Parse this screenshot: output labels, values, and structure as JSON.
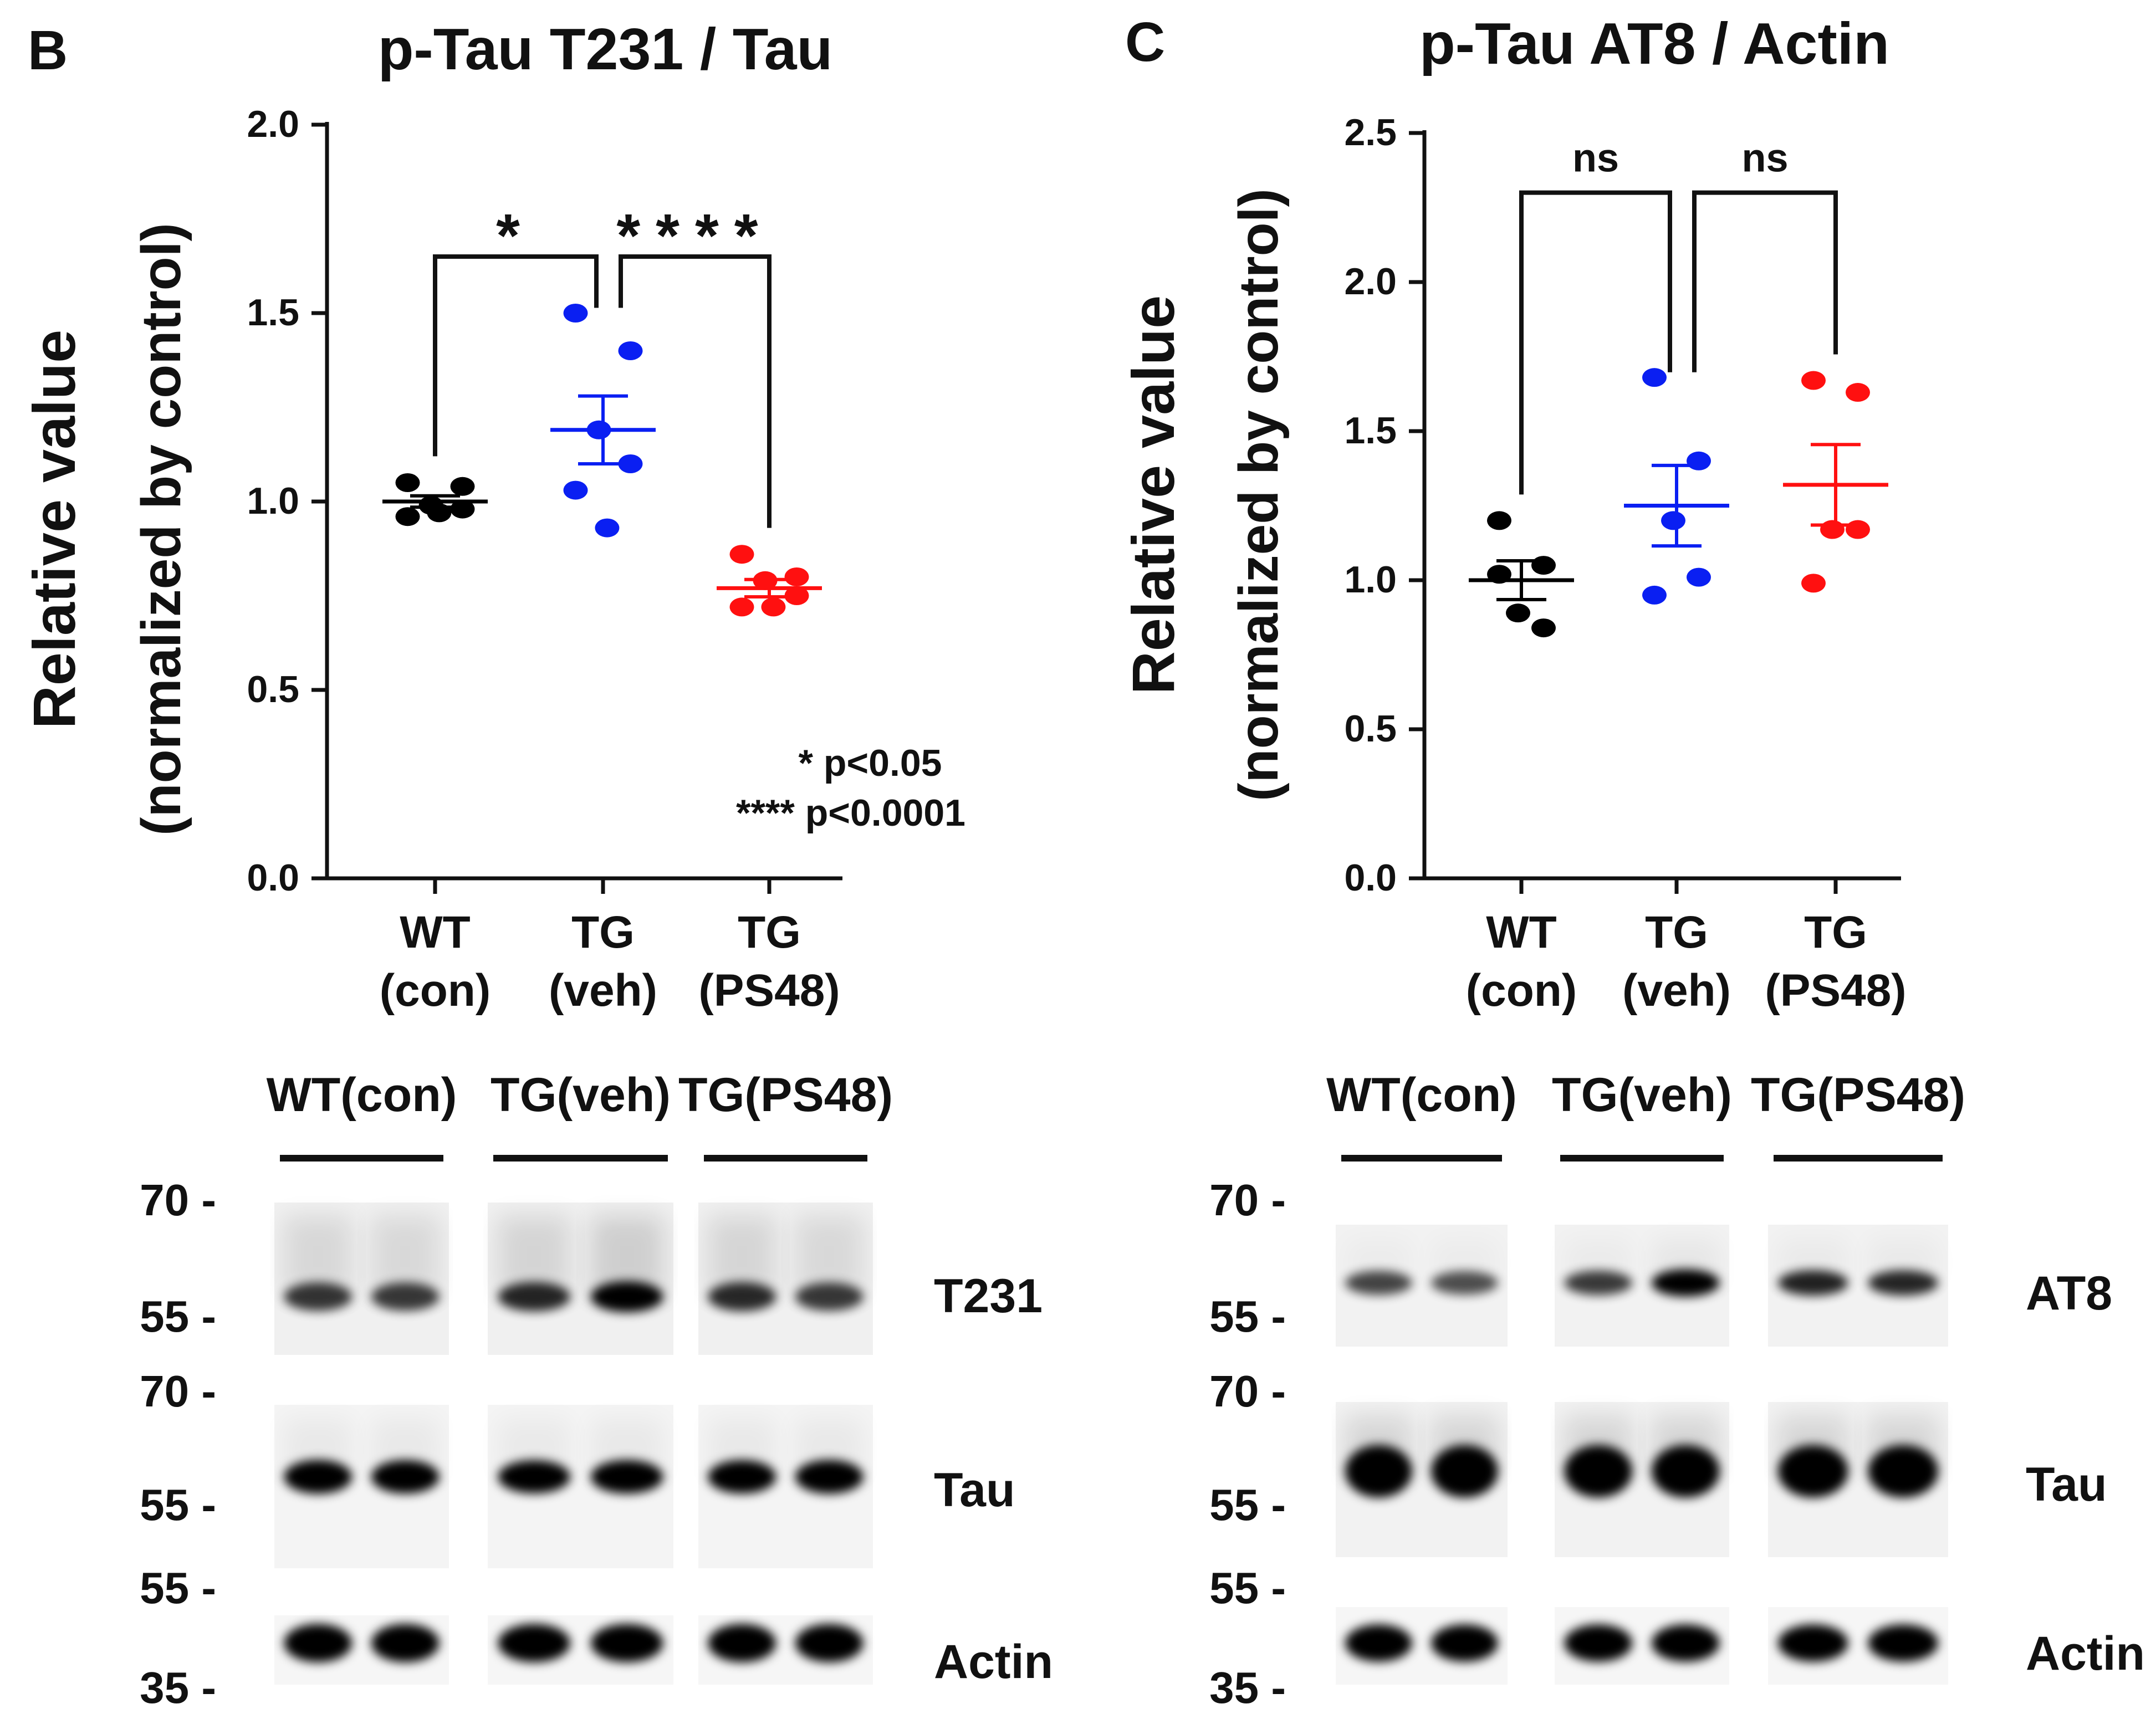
{
  "panels": {
    "B": {
      "label": "B"
    },
    "C": {
      "label": "C"
    }
  },
  "chart_data": [
    {
      "id": "B",
      "type": "scatter",
      "title": "p-Tau T231 / Tau",
      "ylabel_line1": "Relative value",
      "ylabel_line2": "(normalized by control)",
      "ylim": [
        0,
        2.0
      ],
      "yticks": [
        0.0,
        0.5,
        1.0,
        1.5,
        2.0
      ],
      "ytick_labels": [
        "0.0",
        "0.5",
        "1.0",
        "1.5",
        "2.0"
      ],
      "groups": [
        {
          "line1": "WT",
          "line2": "(con)",
          "color": "#000000",
          "values": [
            1.05,
            1.04,
            0.99,
            0.98,
            0.96,
            0.97
          ],
          "mean": 1.0,
          "sem": 0.015
        },
        {
          "line1": "TG",
          "line2": "(veh)",
          "color": "#0a1ff2",
          "values": [
            1.5,
            1.4,
            1.19,
            1.1,
            1.03,
            0.93
          ],
          "mean": 1.19,
          "sem": 0.09
        },
        {
          "line1": "TG",
          "line2": "(PS48)",
          "color": "#ff1010",
          "values": [
            0.86,
            0.8,
            0.79,
            0.75,
            0.72,
            0.72
          ],
          "mean": 0.77,
          "sem": 0.023
        }
      ],
      "comparisons": [
        {
          "from": 0,
          "to": 1,
          "label": "*"
        },
        {
          "from": 1,
          "to": 2,
          "label": "****"
        }
      ],
      "notes": [
        "* p<0.05",
        "**** p<0.0001"
      ]
    },
    {
      "id": "C",
      "type": "scatter",
      "title": "p-Tau AT8 / Actin",
      "ylabel_line1": "Relative value",
      "ylabel_line2": "(normalized by control)",
      "ylim": [
        0,
        2.5
      ],
      "yticks": [
        0.0,
        0.5,
        1.0,
        1.5,
        2.0,
        2.5
      ],
      "ytick_labels": [
        "0.0",
        "0.5",
        "1.0",
        "1.5",
        "2.0",
        "2.5"
      ],
      "groups": [
        {
          "line1": "WT",
          "line2": "(con)",
          "color": "#000000",
          "values": [
            1.2,
            1.05,
            0.89,
            0.84,
            1.02
          ],
          "mean": 1.0,
          "sem": 0.065
        },
        {
          "line1": "TG",
          "line2": "(veh)",
          "color": "#0a1ff2",
          "values": [
            1.68,
            1.4,
            1.2,
            1.01,
            0.95
          ],
          "mean": 1.25,
          "sem": 0.135
        },
        {
          "line1": "TG",
          "line2": "(PS48)",
          "color": "#ff1010",
          "values": [
            1.67,
            1.63,
            1.17,
            1.17,
            0.99
          ],
          "mean": 1.32,
          "sem": 0.135
        }
      ],
      "comparisons": [
        {
          "from": 0,
          "to": 1,
          "label": "ns"
        },
        {
          "from": 1,
          "to": 2,
          "label": "ns"
        }
      ],
      "notes": []
    }
  ],
  "blots": [
    {
      "id": "B",
      "groups": [
        "WT(con)",
        "TG(veh)",
        "TG(PS48)"
      ],
      "bands": [
        {
          "name": "T231",
          "mw_top": "70 -",
          "mw_bottom": "55 -",
          "intensities": [
            0.62,
            0.6,
            0.7,
            0.88,
            0.68,
            0.6
          ]
        },
        {
          "name": "Tau",
          "mw_top": "70 -",
          "mw_bottom": "55 -",
          "intensities": [
            0.95,
            0.92,
            0.88,
            0.93,
            0.92,
            0.95
          ]
        },
        {
          "name": "Actin",
          "mw_top": "55 -",
          "mw_bottom": "35 -",
          "intensities": [
            0.97,
            0.97,
            0.97,
            0.97,
            0.97,
            0.97
          ]
        }
      ]
    },
    {
      "id": "C",
      "groups": [
        "WT(con)",
        "TG(veh)",
        "TG(PS48)"
      ],
      "bands": [
        {
          "name": "AT8",
          "mw_top": "70 -",
          "mw_bottom": "55 -",
          "intensities": [
            0.55,
            0.5,
            0.6,
            0.95,
            0.72,
            0.7
          ]
        },
        {
          "name": "Tau",
          "mw_top": "70 -",
          "mw_bottom": "55 -",
          "intensities": [
            1.0,
            1.0,
            1.0,
            1.0,
            1.0,
            1.0
          ]
        },
        {
          "name": "Actin",
          "mw_top": "55 -",
          "mw_bottom": "35 -",
          "intensities": [
            0.97,
            0.97,
            0.97,
            0.97,
            0.97,
            0.97
          ]
        }
      ]
    }
  ]
}
